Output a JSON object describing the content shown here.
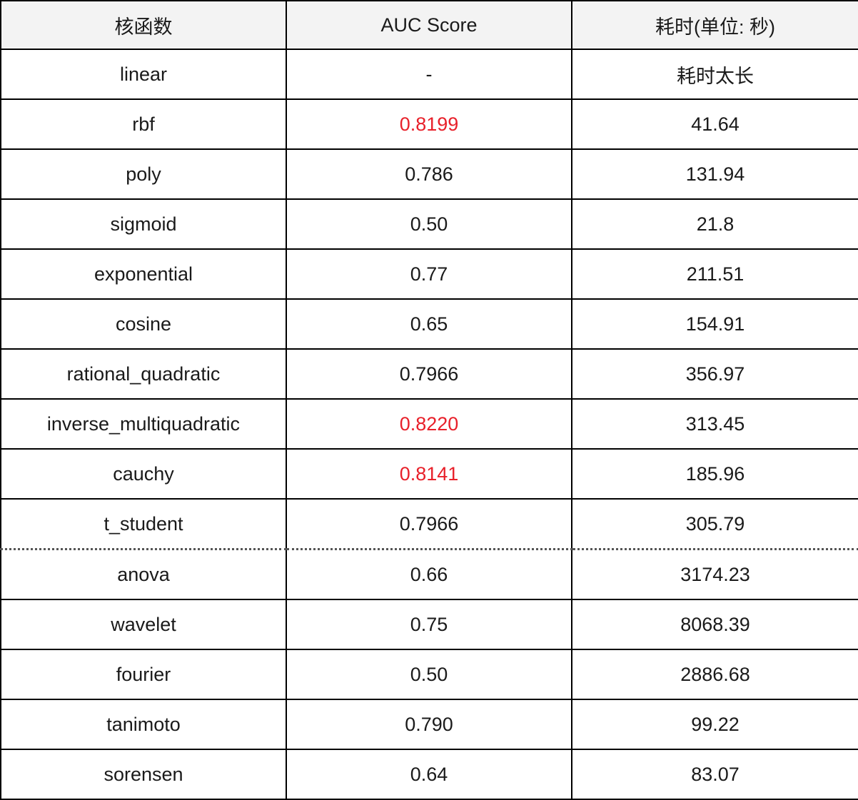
{
  "table": {
    "headers": [
      "核函数",
      "AUC Score",
      "耗时(单位: 秒)"
    ],
    "highlight_color": "#e8202a",
    "rows": [
      {
        "kernel": "linear",
        "auc": "-",
        "time": "耗时太长",
        "highlight": false
      },
      {
        "kernel": "rbf",
        "auc": "0.8199",
        "time": "41.64",
        "highlight": true
      },
      {
        "kernel": "poly",
        "auc": "0.786",
        "time": "131.94",
        "highlight": false
      },
      {
        "kernel": "sigmoid",
        "auc": "0.50",
        "time": "21.8",
        "highlight": false
      },
      {
        "kernel": "exponential",
        "auc": "0.77",
        "time": "211.51",
        "highlight": false
      },
      {
        "kernel": "cosine",
        "auc": "0.65",
        "time": "154.91",
        "highlight": false
      },
      {
        "kernel": "rational_quadratic",
        "auc": "0.7966",
        "time": "356.97",
        "highlight": false
      },
      {
        "kernel": "inverse_multiquadratic",
        "auc": "0.8220",
        "time": "313.45",
        "highlight": true
      },
      {
        "kernel": "cauchy",
        "auc": "0.8141",
        "time": "185.96",
        "highlight": true
      },
      {
        "kernel": "t_student",
        "auc": "0.7966",
        "time": "305.79",
        "highlight": false
      },
      {
        "kernel": "anova",
        "auc": "0.66",
        "time": "3174.23",
        "highlight": false
      },
      {
        "kernel": "wavelet",
        "auc": "0.75",
        "time": "8068.39",
        "highlight": false
      },
      {
        "kernel": "fourier",
        "auc": "0.50",
        "time": "2886.68",
        "highlight": false
      },
      {
        "kernel": "tanimoto",
        "auc": "0.790",
        "time": "99.22",
        "highlight": false
      },
      {
        "kernel": "sorensen",
        "auc": "0.64",
        "time": "83.07",
        "highlight": false
      }
    ]
  }
}
